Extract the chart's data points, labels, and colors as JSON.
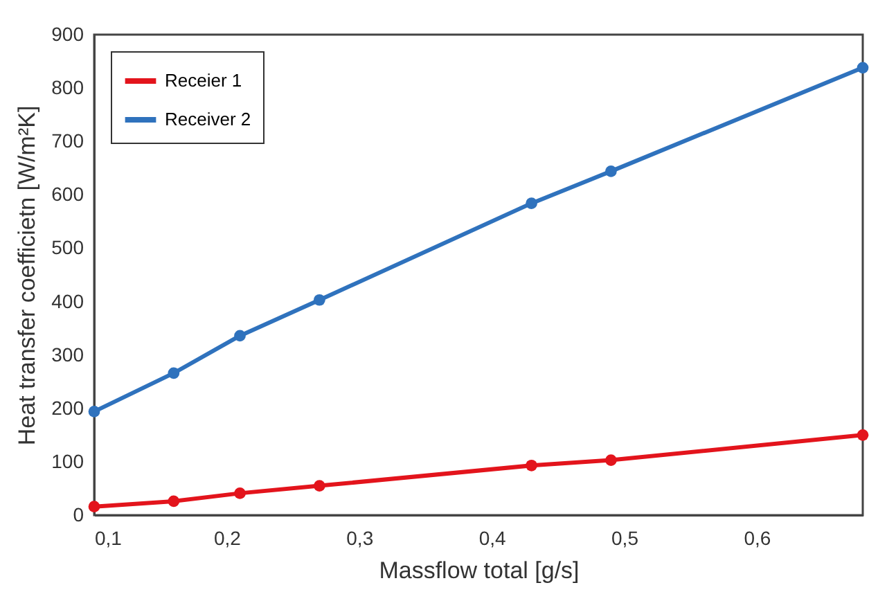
{
  "chart_data": {
    "type": "line",
    "xlabel": "Massflow total [g/s]",
    "ylabel": "Heat transfer coefficietn [W/m²K]",
    "x": [
      0.1,
      0.16,
      0.21,
      0.27,
      0.43,
      0.49,
      0.68
    ],
    "series": [
      {
        "name": "Receier 1",
        "color": "#e3141c",
        "values": [
          16,
          26,
          41,
          55,
          93,
          103,
          150
        ]
      },
      {
        "name": "Receiver 2",
        "color": "#2f72bd",
        "values": [
          194,
          266,
          336,
          403,
          584,
          644,
          838
        ]
      }
    ],
    "xlim": [
      0.1,
      0.68
    ],
    "xticks": [
      {
        "value": 0.1,
        "label": "0,1"
      },
      {
        "value": 0.2,
        "label": "0,2"
      },
      {
        "value": 0.3,
        "label": "0,3"
      },
      {
        "value": 0.4,
        "label": "0,4"
      },
      {
        "value": 0.5,
        "label": "0,5"
      },
      {
        "value": 0.6,
        "label": "0,6"
      }
    ],
    "ylim": [
      0,
      900
    ],
    "yticks": [
      0,
      100,
      200,
      300,
      400,
      500,
      600,
      700,
      800,
      900
    ],
    "grid": false,
    "legend": "top left",
    "marker": "circle",
    "line_style": "solid"
  }
}
